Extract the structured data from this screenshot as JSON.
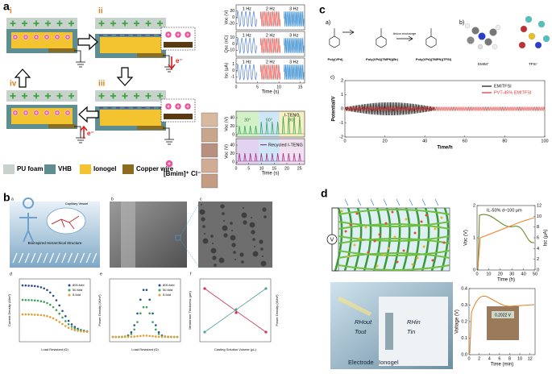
{
  "panel_a": {
    "label": "a",
    "steps": [
      "i",
      "ii",
      "iii",
      "iv"
    ],
    "electron": [
      "e⁻",
      "e⁻"
    ],
    "legend": [
      "PU foam",
      "VHB",
      "Ionogel",
      "Copper wire",
      "[Bmim]⁺ Cl⁻"
    ],
    "frequency_charts": {
      "frequencies": [
        "1 Hz",
        "2 Hz",
        "3 Hz"
      ],
      "xlabel": "Time (s)",
      "xlim": [
        0,
        16
      ],
      "xticks": [
        0,
        5,
        10,
        15
      ],
      "panels": [
        {
          "ylabel": "Voc (V)",
          "ylim": [
            -40,
            40
          ],
          "yticks": [
            -20,
            0,
            20
          ]
        },
        {
          "ylabel": "Qsc (nC)",
          "ylim": [
            -20,
            20
          ],
          "yticks": [
            -10,
            0,
            10
          ]
        },
        {
          "ylabel": "Isc (μA)",
          "ylim": [
            -2,
            2
          ],
          "yticks": [
            -1,
            0,
            1
          ]
        }
      ]
    },
    "angle_charts": {
      "xlabel": "Time (s)",
      "xlim": [
        0,
        27
      ],
      "xticks": [
        0,
        5,
        10,
        15,
        20,
        25
      ],
      "top": {
        "title": "I-TENG",
        "angles": [
          "30°",
          "60°",
          "90°"
        ],
        "ylabel": "Voc (V)",
        "ylim": [
          -5,
          55
        ],
        "yticks": [
          0,
          20,
          40
        ]
      },
      "bottom": {
        "title": "Recycled I-TENG",
        "ylabel": "Voc (V)",
        "ylim": [
          -5,
          55
        ],
        "yticks": [
          0,
          20,
          40
        ]
      }
    }
  },
  "panel_c": {
    "label": "c",
    "subpanels": [
      "a)",
      "b)",
      "c)"
    ],
    "polymers": [
      "Poly(VPd)",
      "Poly(VPd)(TMPN)(Br)",
      "Poly(VPd)(TMPN)(TFSI)"
    ],
    "reaction": "Anion exchange",
    "ions": [
      "EMIM⁺",
      "TFSI⁻"
    ],
    "chart": {
      "ylabel": "Potential/V",
      "xlabel": "Time/h",
      "xlim": [
        0,
        100
      ],
      "xticks": [
        0,
        20,
        40,
        60,
        80,
        100
      ],
      "ylim": [
        -2,
        2
      ],
      "yticks": [
        -2,
        -1,
        0,
        1,
        2
      ],
      "legend": [
        {
          "name": "EMITFSI",
          "color": "#111111"
        },
        {
          "name": "PVT-45% EMITFSI",
          "color": "#e03030"
        }
      ]
    }
  },
  "panel_b": {
    "label": "b",
    "images": [
      "a",
      "b",
      "c"
    ],
    "image_texts": [
      "Capillary Vessel",
      "Bioinspired Hierarchical Structure"
    ],
    "charts": [
      {
        "sub": "d",
        "ylabel": "Current Density (A/m²)",
        "xlabel": "Load Resistant (Ω)",
        "legend": [
          {
            "name": "800-fold",
            "color": "#2a4c8f"
          },
          {
            "name": "50-fold",
            "color": "#3da35d"
          },
          {
            "name": "5-fold",
            "color": "#e0a030"
          }
        ]
      },
      {
        "sub": "e",
        "ylabel": "Power Density (W/m²)",
        "xlabel": "Load Resistant (Ω)",
        "legend": [
          {
            "name": "800-fold",
            "color": "#2a4c8f"
          },
          {
            "name": "50-fold",
            "color": "#3da35d"
          },
          {
            "name": "5-fold",
            "color": "#e0a030"
          }
        ]
      },
      {
        "sub": "f",
        "ylabel": "Membrane Thickness (μm)",
        "y2label": "Power Density (W/m²)",
        "xlabel": "Casting Solution Volume (μL)"
      }
    ]
  },
  "panel_d": {
    "label": "d",
    "voltmeter": "V",
    "chart1": {
      "annotation": "IL-50% d~100 μm",
      "ylabel": "Voc (V)",
      "y2label": "Isc (μA)",
      "xlabel": "Time (h)",
      "xlim": [
        0,
        50
      ],
      "xticks": [
        0,
        10,
        20,
        30,
        40,
        50
      ],
      "ylim": [
        0,
        2
      ],
      "yticks": [
        0,
        1,
        2
      ],
      "y2lim": [
        0,
        12
      ],
      "y2ticks": [
        0,
        2,
        4,
        6,
        8,
        10,
        12
      ]
    },
    "photo_labels": [
      "RHout",
      "Tout",
      "RHin",
      "Tin",
      "Electrode",
      "Ionogel"
    ],
    "chart2": {
      "ylabel": "Voltage (V)",
      "xlabel": "Time (min)",
      "xlim": [
        0,
        13
      ],
      "xticks": [
        0,
        2,
        4,
        6,
        8,
        10,
        12
      ],
      "ylim": [
        0,
        0.4
      ],
      "yticks": [
        {
          "value": 0,
          "label": "0.0"
        },
        {
          "value": 0.1,
          "label": "0.1"
        },
        {
          "value": 0.2,
          "label": "0.2"
        },
        {
          "value": 0.3,
          "label": "0.3"
        },
        {
          "value": 0.4,
          "label": "0.4"
        }
      ]
    },
    "meter_reading": "0.2022 V"
  }
}
